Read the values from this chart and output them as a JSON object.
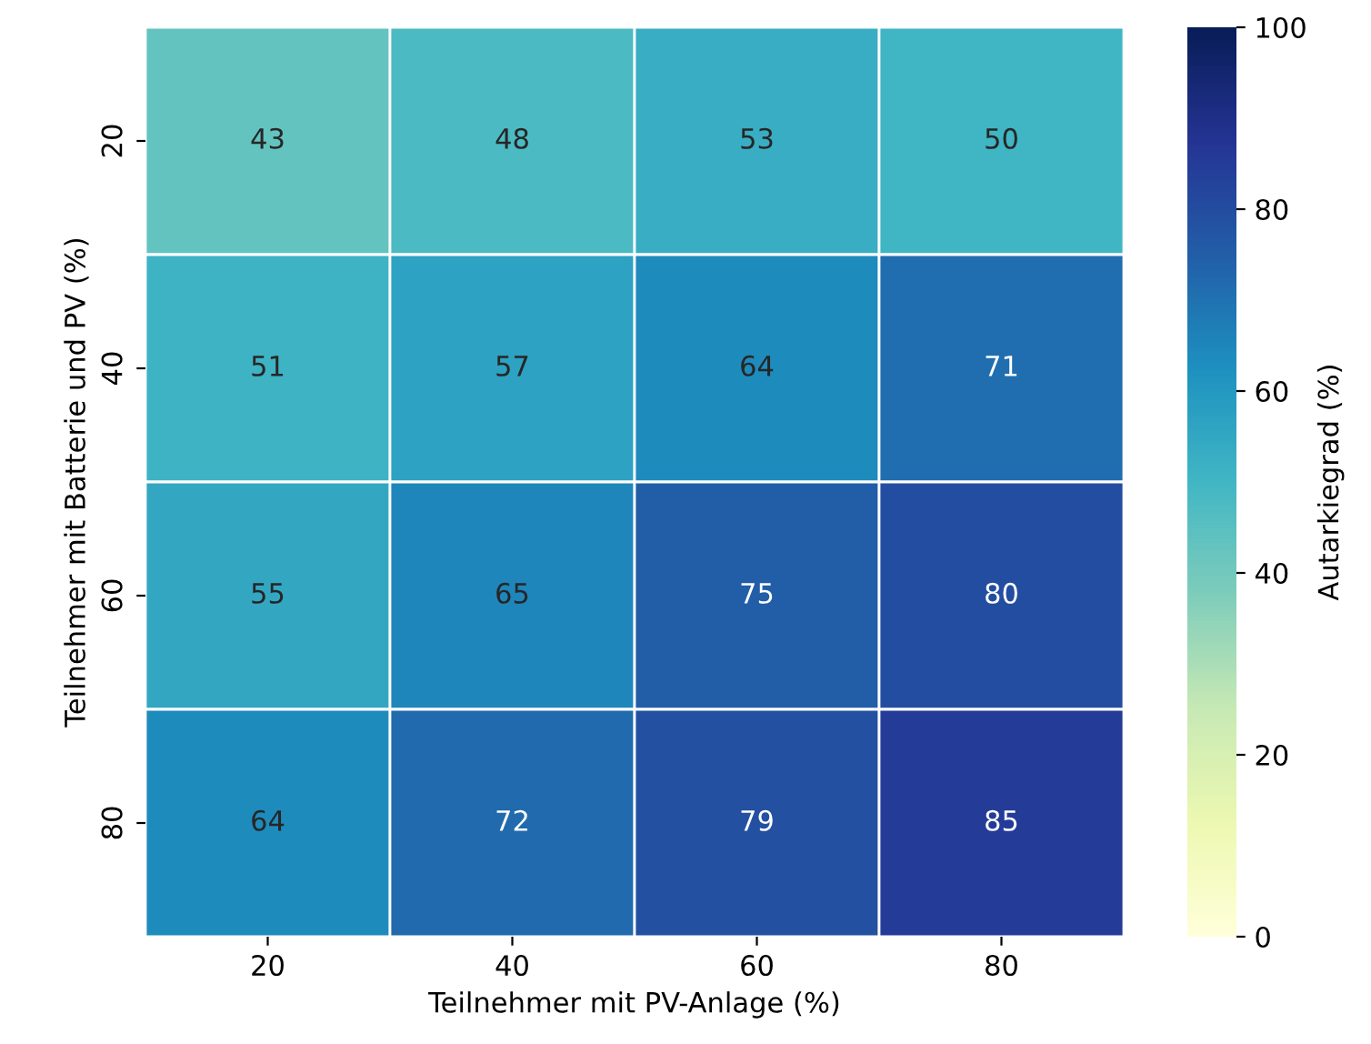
{
  "chart_data": {
    "type": "heatmap",
    "xlabel": "Teilnehmer mit PV-Anlage (%)",
    "ylabel": "Teilnehmer mit Batterie und PV (%)",
    "clabel": "Autarkiegrad (%)",
    "categories": [
      "20",
      "40",
      "60",
      "80"
    ],
    "y_categories": [
      "20",
      "40",
      "60",
      "80"
    ],
    "cells": [
      [
        43,
        48,
        53,
        50
      ],
      [
        51,
        57,
        64,
        71
      ],
      [
        55,
        65,
        75,
        80
      ],
      [
        64,
        72,
        79,
        85
      ]
    ],
    "clim": [
      0,
      100
    ],
    "cticks": [
      0,
      20,
      40,
      60,
      80,
      100
    ],
    "data_labels": true
  }
}
